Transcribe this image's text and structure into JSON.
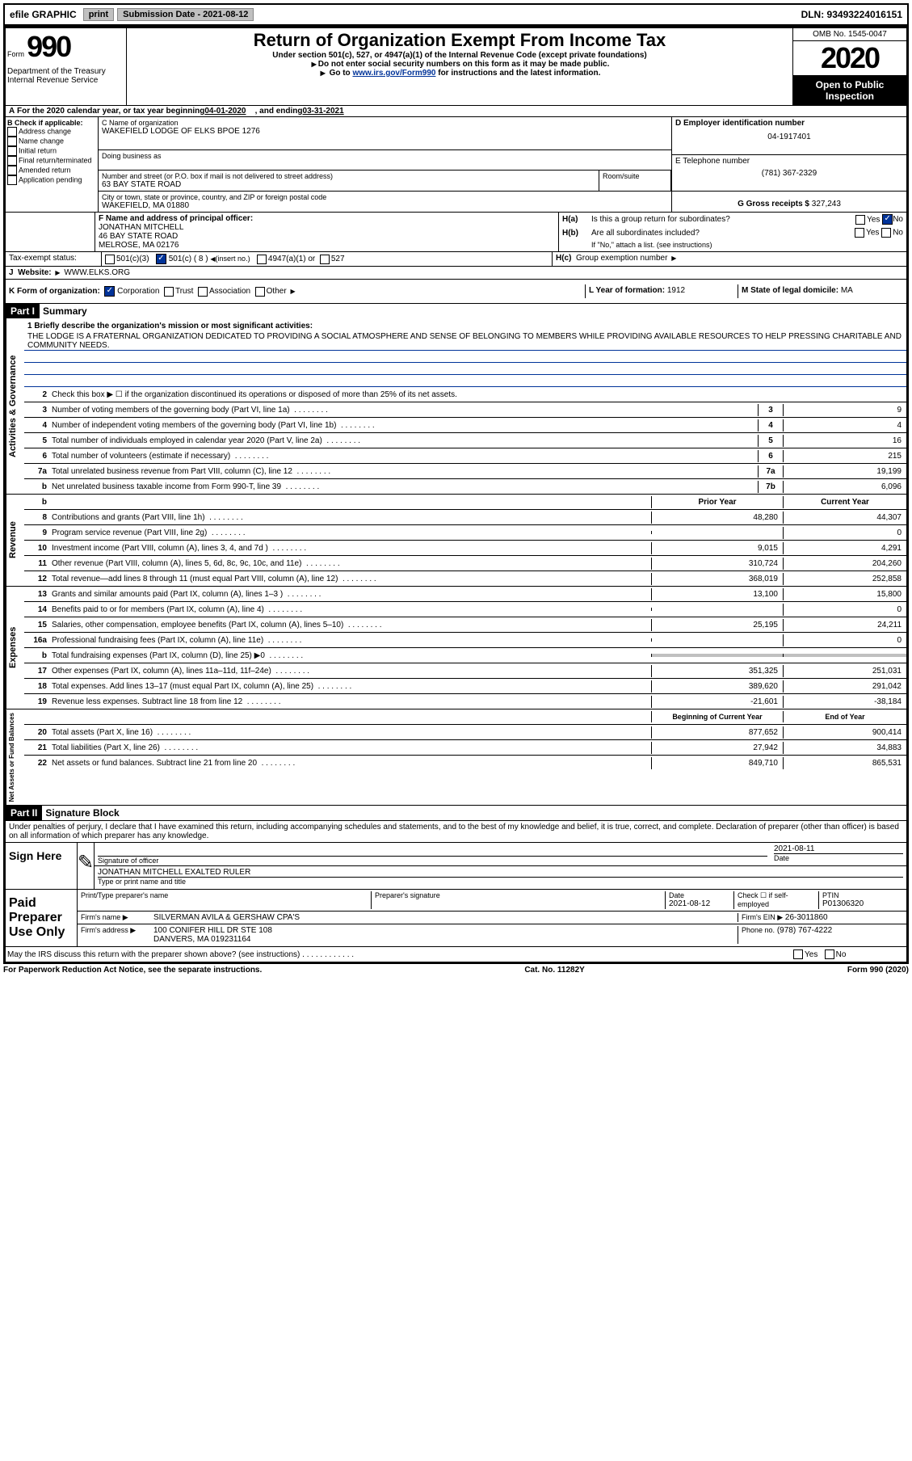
{
  "topbar": {
    "efile": "efile GRAPHIC",
    "print": "print",
    "sub_label": "Submission Date - 2021-08-12",
    "dln": "DLN: 93493224016151"
  },
  "header": {
    "form_label": "Form",
    "form_num": "990",
    "dept": "Department of the Treasury\nInternal Revenue Service",
    "title": "Return of Organization Exempt From Income Tax",
    "sub1": "Under section 501(c), 527, or 4947(a)(1) of the Internal Revenue Code (except private foundations)",
    "sub2": "Do not enter social security numbers on this form as it may be made public.",
    "sub3_pre": "Go to ",
    "sub3_link": "www.irs.gov/Form990",
    "sub3_post": " for instructions and the latest information.",
    "omb": "OMB No. 1545-0047",
    "year": "2020",
    "open": "Open to Public Inspection"
  },
  "sectionA": {
    "text_pre": "For the 2020 calendar year, or tax year beginning ",
    "begin": "04-01-2020",
    "mid": ", and ending ",
    "end": "03-31-2021"
  },
  "boxB": {
    "label": "B Check if applicable:",
    "opts": [
      "Address change",
      "Name change",
      "Initial return",
      "Final return/terminated",
      "Amended return",
      "Application pending"
    ]
  },
  "boxC": {
    "name_label": "C Name of organization",
    "name": "WAKEFIELD LODGE OF ELKS BPOE 1276",
    "dba_label": "Doing business as",
    "addr_label": "Number and street (or P.O. box if mail is not delivered to street address)",
    "room_label": "Room/suite",
    "addr": "63 BAY STATE ROAD",
    "city_label": "City or town, state or province, country, and ZIP or foreign postal code",
    "city": "WAKEFIELD, MA  01880"
  },
  "boxD": {
    "label": "D Employer identification number",
    "ein": "04-1917401"
  },
  "boxE": {
    "label": "E Telephone number",
    "phone": "(781) 367-2329"
  },
  "boxG": {
    "label": "G Gross receipts $",
    "val": "327,243"
  },
  "boxF": {
    "label": "F Name and address of principal officer:",
    "name": "JONATHAN MITCHELL",
    "addr1": "46 BAY STATE ROAD",
    "addr2": "MELROSE, MA  02176"
  },
  "boxH": {
    "a_label": "H(a)",
    "a_text": "Is this a group return for subordinates?",
    "b_label": "H(b)",
    "b_text": "Are all subordinates included?",
    "b_note": "If \"No,\" attach a list. (see instructions)",
    "c_label": "H(c)",
    "c_text": "Group exemption number"
  },
  "boxI": {
    "label": "Tax-exempt status:",
    "opt1": "501(c)(3)",
    "opt2": "501(c) ( 8 )",
    "opt2_note": "(insert no.)",
    "opt3": "4947(a)(1) or",
    "opt4": "527"
  },
  "boxJ": {
    "label": "Website:",
    "val": "WWW.ELKS.ORG"
  },
  "boxK": {
    "label": "K Form of organization:",
    "opts": [
      "Corporation",
      "Trust",
      "Association",
      "Other"
    ]
  },
  "boxL": {
    "label": "L Year of formation:",
    "val": "1912"
  },
  "boxM": {
    "label": "M State of legal domicile:",
    "val": "MA"
  },
  "part1": {
    "header": "Part I",
    "title": "Summary"
  },
  "mission": {
    "label": "1 Briefly describe the organization's mission or most significant activities:",
    "text": "THE LODGE IS A FRATERNAL ORGANIZATION DEDICATED TO PROVIDING A SOCIAL ATMOSPHERE AND SENSE OF BELONGING TO MEMBERS WHILE PROVIDING AVAILABLE RESOURCES TO HELP PRESSING CHARITABLE AND COMMUNITY NEEDS."
  },
  "governance": {
    "label": "Activities & Governance",
    "l2": "Check this box ▶ ☐ if the organization discontinued its operations or disposed of more than 25% of its net assets.",
    "lines": [
      {
        "n": "3",
        "t": "Number of voting members of the governing body (Part VI, line 1a)",
        "box": "3",
        "v": "9"
      },
      {
        "n": "4",
        "t": "Number of independent voting members of the governing body (Part VI, line 1b)",
        "box": "4",
        "v": "4"
      },
      {
        "n": "5",
        "t": "Total number of individuals employed in calendar year 2020 (Part V, line 2a)",
        "box": "5",
        "v": "16"
      },
      {
        "n": "6",
        "t": "Total number of volunteers (estimate if necessary)",
        "box": "6",
        "v": "215"
      },
      {
        "n": "7a",
        "t": "Total unrelated business revenue from Part VIII, column (C), line 12",
        "box": "7a",
        "v": "19,199"
      },
      {
        "n": "b",
        "t": "Net unrelated business taxable income from Form 990-T, line 39",
        "box": "7b",
        "v": "6,096"
      }
    ]
  },
  "revenue": {
    "label": "Revenue",
    "header_prior": "Prior Year",
    "header_current": "Current Year",
    "lines": [
      {
        "n": "8",
        "t": "Contributions and grants (Part VIII, line 1h)",
        "p": "48,280",
        "c": "44,307"
      },
      {
        "n": "9",
        "t": "Program service revenue (Part VIII, line 2g)",
        "p": "",
        "c": "0"
      },
      {
        "n": "10",
        "t": "Investment income (Part VIII, column (A), lines 3, 4, and 7d )",
        "p": "9,015",
        "c": "4,291"
      },
      {
        "n": "11",
        "t": "Other revenue (Part VIII, column (A), lines 5, 6d, 8c, 9c, 10c, and 11e)",
        "p": "310,724",
        "c": "204,260"
      },
      {
        "n": "12",
        "t": "Total revenue—add lines 8 through 11 (must equal Part VIII, column (A), line 12)",
        "p": "368,019",
        "c": "252,858"
      }
    ]
  },
  "expenses": {
    "label": "Expenses",
    "lines": [
      {
        "n": "13",
        "t": "Grants and similar amounts paid (Part IX, column (A), lines 1–3 )",
        "p": "13,100",
        "c": "15,800"
      },
      {
        "n": "14",
        "t": "Benefits paid to or for members (Part IX, column (A), line 4)",
        "p": "",
        "c": "0"
      },
      {
        "n": "15",
        "t": "Salaries, other compensation, employee benefits (Part IX, column (A), lines 5–10)",
        "p": "25,195",
        "c": "24,211"
      },
      {
        "n": "16a",
        "t": "Professional fundraising fees (Part IX, column (A), line 11e)",
        "p": "",
        "c": "0"
      },
      {
        "n": "b",
        "t": "Total fundraising expenses (Part IX, column (D), line 25) ▶0",
        "p": "shaded",
        "c": "shaded"
      },
      {
        "n": "17",
        "t": "Other expenses (Part IX, column (A), lines 11a–11d, 11f–24e)",
        "p": "351,325",
        "c": "251,031"
      },
      {
        "n": "18",
        "t": "Total expenses. Add lines 13–17 (must equal Part IX, column (A), line 25)",
        "p": "389,620",
        "c": "291,042"
      },
      {
        "n": "19",
        "t": "Revenue less expenses. Subtract line 18 from line 12",
        "p": "-21,601",
        "c": "-38,184"
      }
    ]
  },
  "netassets": {
    "label": "Net Assets or Fund Balances",
    "header_begin": "Beginning of Current Year",
    "header_end": "End of Year",
    "lines": [
      {
        "n": "20",
        "t": "Total assets (Part X, line 16)",
        "p": "877,652",
        "c": "900,414"
      },
      {
        "n": "21",
        "t": "Total liabilities (Part X, line 26)",
        "p": "27,942",
        "c": "34,883"
      },
      {
        "n": "22",
        "t": "Net assets or fund balances. Subtract line 21 from line 20",
        "p": "849,710",
        "c": "865,531"
      }
    ]
  },
  "part2": {
    "header": "Part II",
    "title": "Signature Block",
    "penalty": "Under penalties of perjury, I declare that I have examined this return, including accompanying schedules and statements, and to the best of my knowledge and belief, it is true, correct, and complete. Declaration of preparer (other than officer) is based on all information of which preparer has any knowledge."
  },
  "sign": {
    "label": "Sign Here",
    "sig_label": "Signature of officer",
    "date_label": "Date",
    "date": "2021-08-11",
    "name_label": "Type or print name and title",
    "name": "JONATHAN MITCHELL EXALTED RULER"
  },
  "paid": {
    "label": "Paid Preparer Use Only",
    "print_label": "Print/Type preparer's name",
    "sig_label": "Preparer's signature",
    "date_label": "Date",
    "date": "2021-08-12",
    "self_label": "Check ☐ if self-employed",
    "ptin_label": "PTIN",
    "ptin": "P01306320",
    "firm_label": "Firm's name ▶",
    "firm": "SILVERMAN AVILA & GERSHAW CPA'S",
    "ein_label": "Firm's EIN ▶",
    "ein": "26-3011860",
    "addr_label": "Firm's address ▶",
    "addr1": "100 CONIFER HILL DR STE 108",
    "addr2": "DANVERS, MA  019231164",
    "phone_label": "Phone no.",
    "phone": "(978) 767-4222"
  },
  "discuss": "May the IRS discuss this return with the preparer shown above? (see instructions)",
  "footer": {
    "left": "For Paperwork Reduction Act Notice, see the separate instructions.",
    "mid": "Cat. No. 11282Y",
    "right": "Form 990 (2020)"
  }
}
